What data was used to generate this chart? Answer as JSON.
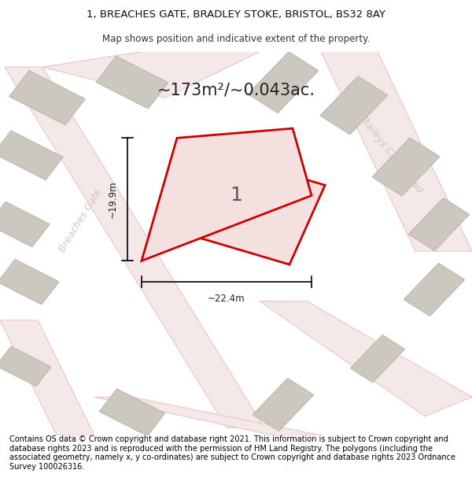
{
  "title_line1": "1, BREACHES GATE, BRADLEY STOKE, BRISTOL, BS32 8AY",
  "title_line2": "Map shows position and indicative extent of the property.",
  "area_text": "~173m²/~0.043ac.",
  "label_number": "1",
  "dim_width": "~22.4m",
  "dim_height": "~19.9m",
  "road_label_left": "Breaches Gate",
  "road_label_right": "Baileys Court Road",
  "footer_text": "Contains OS data © Crown copyright and database right 2021. This information is subject to Crown copyright and database rights 2023 and is reproduced with the permission of HM Land Registry. The polygons (including the associated geometry, namely x, y co-ordinates) are subject to Crown copyright and database rights 2023 Ordnance Survey 100026316.",
  "map_bg": "#f0eee8",
  "plot_edge_color": "#cc0000",
  "plot_fill": "#f5e0e0",
  "building_face": "#ccc8c0",
  "building_edge": "#bbb8b0",
  "road_fill": "#f5e8e8",
  "road_edge": "#e8c0c0",
  "dim_color": "#000000",
  "text_color": "#333333",
  "road_text_color": "#c8c0b8",
  "footer_fontsize": 7.0,
  "title_fontsize1": 9.5,
  "title_fontsize2": 8.5,
  "area_fontsize": 15,
  "label_fontsize": 18,
  "dim_fontsize": 8.5,
  "road_fontsize": 9
}
